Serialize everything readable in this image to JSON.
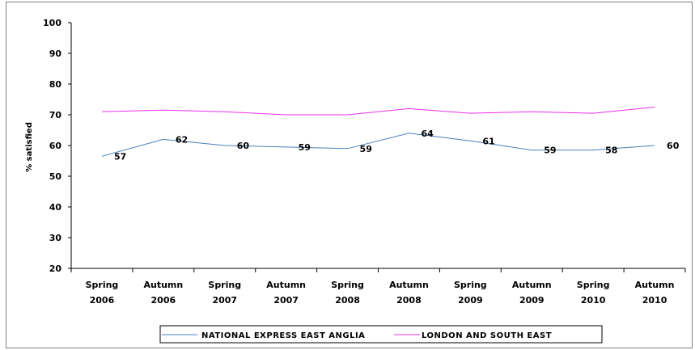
{
  "chart_data": {
    "type": "line",
    "title": "",
    "xlabel": "",
    "ylabel": "% satisfied",
    "ylim": [
      20,
      100
    ],
    "ytick_step": 10,
    "grid": false,
    "legend_position": "bottom",
    "categories": [
      [
        "Spring",
        "2006"
      ],
      [
        "Autumn",
        "2006"
      ],
      [
        "Spring",
        "2007"
      ],
      [
        "Autumn",
        "2007"
      ],
      [
        "Spring",
        "2008"
      ],
      [
        "Autumn",
        "2008"
      ],
      [
        "Spring",
        "2009"
      ],
      [
        "Autumn",
        "2009"
      ],
      [
        "Spring",
        "2010"
      ],
      [
        "Autumn",
        "2010"
      ]
    ],
    "series": [
      {
        "name": "NATIONAL EXPRESS EAST ANGLIA",
        "color": "#4a7ebb",
        "values": [
          57,
          62,
          60,
          59,
          59,
          64,
          61,
          59,
          58,
          60
        ],
        "plot_values": [
          56.5,
          62,
          60,
          59.5,
          59,
          64,
          61.5,
          58.5,
          58.5,
          60
        ],
        "show_labels": true
      },
      {
        "name": "LONDON AND SOUTH EAST",
        "color": "#ee30ee",
        "values": [
          71,
          71.5,
          71,
          70,
          70,
          72,
          70.5,
          71,
          70.5,
          72.5
        ],
        "show_labels": false
      }
    ]
  }
}
